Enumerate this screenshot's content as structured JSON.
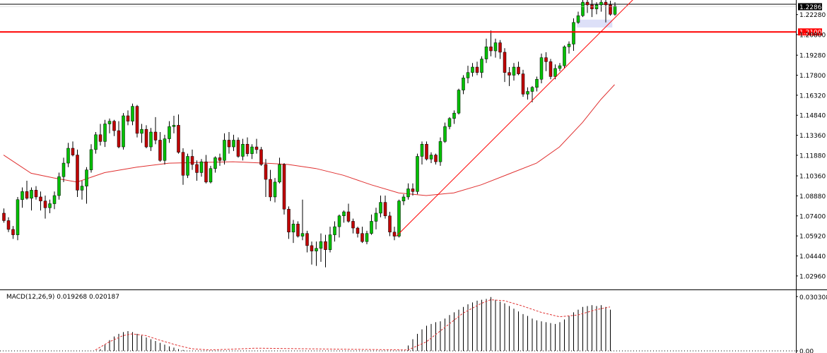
{
  "chart_data": [
    {
      "type": "candlestick",
      "title": "",
      "ylim": [
        1.0196,
        1.2336
      ],
      "price_ticks": [
        "1.22280",
        "1.20800",
        "1.19280",
        "1.17800",
        "1.16320",
        "1.14840",
        "1.13360",
        "1.11880",
        "1.10360",
        "1.08880",
        "1.07400",
        "1.05920",
        "1.04440",
        "1.02960"
      ],
      "current_price_label": "1.22865",
      "current_price": 1.22865,
      "horizontal_line": {
        "label": "1.21000",
        "value": 1.21,
        "color": "#ff0000"
      },
      "colors": {
        "up": "#00c000",
        "down": "#c00000",
        "wick": "#000000",
        "ma": "#e03030",
        "trend": "#ff0000",
        "zone": "#dde0f8"
      },
      "candles": [
        [
          1.076,
          1.0795,
          1.069,
          1.0705
        ],
        [
          1.0705,
          1.073,
          1.062,
          1.064
        ],
        [
          1.064,
          1.0665,
          1.057,
          1.06
        ],
        [
          1.06,
          1.088,
          1.056,
          1.086
        ],
        [
          1.086,
          1.095,
          1.08,
          1.092
        ],
        [
          1.092,
          1.1,
          1.086,
          1.087
        ],
        [
          1.087,
          1.095,
          1.078,
          1.093
        ],
        [
          1.093,
          1.096,
          1.086,
          1.088
        ],
        [
          1.088,
          1.092,
          1.078,
          1.085
        ],
        [
          1.085,
          1.089,
          1.072,
          1.08
        ],
        [
          1.08,
          1.086,
          1.076,
          1.083
        ],
        [
          1.083,
          1.092,
          1.079,
          1.089
        ],
        [
          1.089,
          1.106,
          1.086,
          1.103
        ],
        [
          1.103,
          1.117,
          1.099,
          1.113
        ],
        [
          1.113,
          1.128,
          1.11,
          1.124
        ],
        [
          1.124,
          1.129,
          1.118,
          1.119
        ],
        [
          1.119,
          1.123,
          1.088,
          1.093
        ],
        [
          1.093,
          1.1,
          1.086,
          1.096
        ],
        [
          1.096,
          1.11,
          1.083,
          1.108
        ],
        [
          1.108,
          1.127,
          1.106,
          1.123
        ],
        [
          1.123,
          1.136,
          1.12,
          1.134
        ],
        [
          1.134,
          1.142,
          1.126,
          1.129
        ],
        [
          1.129,
          1.145,
          1.125,
          1.142
        ],
        [
          1.142,
          1.146,
          1.135,
          1.144
        ],
        [
          1.144,
          1.145,
          1.133,
          1.137
        ],
        [
          1.137,
          1.144,
          1.124,
          1.125
        ],
        [
          1.125,
          1.15,
          1.123,
          1.148
        ],
        [
          1.148,
          1.152,
          1.141,
          1.144
        ],
        [
          1.144,
          1.157,
          1.141,
          1.155
        ],
        [
          1.155,
          1.156,
          1.132,
          1.135
        ],
        [
          1.135,
          1.142,
          1.128,
          1.138
        ],
        [
          1.138,
          1.141,
          1.124,
          1.125
        ],
        [
          1.125,
          1.139,
          1.122,
          1.136
        ],
        [
          1.136,
          1.147,
          1.127,
          1.13
        ],
        [
          1.13,
          1.136,
          1.114,
          1.115
        ],
        [
          1.115,
          1.134,
          1.112,
          1.131
        ],
        [
          1.131,
          1.144,
          1.128,
          1.14
        ],
        [
          1.14,
          1.148,
          1.135,
          1.141
        ],
        [
          1.141,
          1.149,
          1.12,
          1.121
        ],
        [
          1.121,
          1.124,
          1.097,
          1.104
        ],
        [
          1.104,
          1.12,
          1.102,
          1.118
        ],
        [
          1.118,
          1.123,
          1.108,
          1.112
        ],
        [
          1.112,
          1.115,
          1.1,
          1.106
        ],
        [
          1.106,
          1.116,
          1.103,
          1.114
        ],
        [
          1.114,
          1.119,
          1.098,
          1.099
        ],
        [
          1.099,
          1.111,
          1.098,
          1.109
        ],
        [
          1.109,
          1.118,
          1.106,
          1.117
        ],
        [
          1.117,
          1.12,
          1.111,
          1.115
        ],
        [
          1.115,
          1.135,
          1.112,
          1.13
        ],
        [
          1.13,
          1.136,
          1.12,
          1.125
        ],
        [
          1.125,
          1.134,
          1.122,
          1.13
        ],
        [
          1.13,
          1.132,
          1.117,
          1.118
        ],
        [
          1.118,
          1.131,
          1.115,
          1.127
        ],
        [
          1.127,
          1.132,
          1.118,
          1.12
        ],
        [
          1.12,
          1.127,
          1.116,
          1.125
        ],
        [
          1.125,
          1.131,
          1.12,
          1.123
        ],
        [
          1.123,
          1.125,
          1.111,
          1.112
        ],
        [
          1.112,
          1.116,
          1.088,
          1.101
        ],
        [
          1.101,
          1.108,
          1.085,
          1.088
        ],
        [
          1.088,
          1.102,
          1.084,
          1.099
        ],
        [
          1.099,
          1.117,
          1.098,
          1.112
        ],
        [
          1.112,
          1.113,
          1.075,
          1.079
        ],
        [
          1.079,
          1.081,
          1.057,
          1.062
        ],
        [
          1.062,
          1.071,
          1.054,
          1.068
        ],
        [
          1.068,
          1.07,
          1.058,
          1.059
        ],
        [
          1.059,
          1.086,
          1.056,
          1.061
        ],
        [
          1.061,
          1.063,
          1.047,
          1.052
        ],
        [
          1.052,
          1.055,
          1.038,
          1.048
        ],
        [
          1.048,
          1.055,
          1.037,
          1.05
        ],
        [
          1.05,
          1.061,
          1.04,
          1.055
        ],
        [
          1.055,
          1.06,
          1.036,
          1.049
        ],
        [
          1.049,
          1.066,
          1.047,
          1.06
        ],
        [
          1.06,
          1.07,
          1.055,
          1.066
        ],
        [
          1.066,
          1.075,
          1.058,
          1.074
        ],
        [
          1.074,
          1.078,
          1.069,
          1.077
        ],
        [
          1.077,
          1.083,
          1.069,
          1.07
        ],
        [
          1.07,
          1.072,
          1.061,
          1.065
        ],
        [
          1.065,
          1.066,
          1.058,
          1.061
        ],
        [
          1.061,
          1.066,
          1.054,
          1.055
        ],
        [
          1.055,
          1.063,
          1.053,
          1.061
        ],
        [
          1.061,
          1.075,
          1.06,
          1.07
        ],
        [
          1.07,
          1.08,
          1.064,
          1.076
        ],
        [
          1.076,
          1.089,
          1.073,
          1.084
        ],
        [
          1.084,
          1.089,
          1.072,
          1.074
        ],
        [
          1.074,
          1.077,
          1.059,
          1.062
        ],
        [
          1.062,
          1.066,
          1.056,
          1.059
        ],
        [
          1.059,
          1.086,
          1.058,
          1.085
        ],
        [
          1.085,
          1.09,
          1.082,
          1.088
        ],
        [
          1.088,
          1.098,
          1.086,
          1.094
        ],
        [
          1.094,
          1.098,
          1.089,
          1.092
        ],
        [
          1.092,
          1.12,
          1.09,
          1.118
        ],
        [
          1.118,
          1.129,
          1.112,
          1.127
        ],
        [
          1.127,
          1.129,
          1.115,
          1.116
        ],
        [
          1.116,
          1.121,
          1.113,
          1.119
        ],
        [
          1.119,
          1.12,
          1.112,
          1.114
        ],
        [
          1.114,
          1.132,
          1.111,
          1.129
        ],
        [
          1.129,
          1.143,
          1.128,
          1.14
        ],
        [
          1.14,
          1.147,
          1.138,
          1.146
        ],
        [
          1.146,
          1.152,
          1.142,
          1.15
        ],
        [
          1.15,
          1.168,
          1.149,
          1.167
        ],
        [
          1.167,
          1.178,
          1.164,
          1.176
        ],
        [
          1.176,
          1.185,
          1.172,
          1.18
        ],
        [
          1.18,
          1.187,
          1.177,
          1.184
        ],
        [
          1.184,
          1.188,
          1.178,
          1.18
        ],
        [
          1.18,
          1.192,
          1.176,
          1.19
        ],
        [
          1.19,
          1.205,
          1.187,
          1.199
        ],
        [
          1.199,
          1.211,
          1.192,
          1.196
        ],
        [
          1.196,
          1.205,
          1.191,
          1.202
        ],
        [
          1.202,
          1.204,
          1.19,
          1.195
        ],
        [
          1.195,
          1.198,
          1.173,
          1.18
        ],
        [
          1.18,
          1.184,
          1.17,
          1.178
        ],
        [
          1.178,
          1.187,
          1.174,
          1.184
        ],
        [
          1.184,
          1.188,
          1.178,
          1.179
        ],
        [
          1.179,
          1.182,
          1.162,
          1.164
        ],
        [
          1.164,
          1.169,
          1.16,
          1.166
        ],
        [
          1.166,
          1.17,
          1.158,
          1.169
        ],
        [
          1.169,
          1.177,
          1.166,
          1.175
        ],
        [
          1.175,
          1.194,
          1.172,
          1.191
        ],
        [
          1.191,
          1.195,
          1.181,
          1.188
        ],
        [
          1.188,
          1.19,
          1.175,
          1.177
        ],
        [
          1.177,
          1.186,
          1.175,
          1.183
        ],
        [
          1.183,
          1.187,
          1.181,
          1.185
        ],
        [
          1.185,
          1.2,
          1.183,
          1.199
        ],
        [
          1.199,
          1.203,
          1.194,
          1.201
        ],
        [
          1.201,
          1.22,
          1.196,
          1.217
        ],
        [
          1.217,
          1.225,
          1.216,
          1.222
        ],
        [
          1.222,
          1.234,
          1.221,
          1.232
        ],
        [
          1.232,
          1.234,
          1.224,
          1.23
        ],
        [
          1.23,
          1.234,
          1.221,
          1.227
        ],
        [
          1.227,
          1.232,
          1.223,
          1.23
        ],
        [
          1.23,
          1.234,
          1.225,
          1.232
        ],
        [
          1.232,
          1.234,
          1.217,
          1.23
        ],
        [
          1.23,
          1.233,
          1.222,
          1.223
        ],
        [
          1.223,
          1.232,
          1.222,
          1.229
        ]
      ],
      "moving_average": [
        [
          0,
          1.119
        ],
        [
          6,
          1.1055
        ],
        [
          11,
          1.102
        ],
        [
          16,
          1.099
        ],
        [
          22,
          1.106
        ],
        [
          29,
          1.11
        ],
        [
          36,
          1.113
        ],
        [
          43,
          1.1135
        ],
        [
          50,
          1.114
        ],
        [
          57,
          1.113
        ],
        [
          62,
          1.112
        ],
        [
          68,
          1.109
        ],
        [
          74,
          1.104
        ],
        [
          80,
          1.097
        ],
        [
          86,
          1.091
        ],
        [
          92,
          1.089
        ],
        [
          98,
          1.091
        ],
        [
          104,
          1.097
        ],
        [
          110,
          1.105
        ],
        [
          116,
          1.113
        ],
        [
          121,
          1.125
        ],
        [
          126,
          1.143
        ],
        [
          130,
          1.16
        ],
        [
          133,
          1.171
        ]
      ],
      "trendlines": [
        {
          "from": [
            85.5,
            1.059
          ],
          "to": [
            140,
            1.244
          ]
        }
      ],
      "zone": {
        "x_from": 124.8,
        "x_to": 132.5,
        "y_from": 1.2133,
        "y_to": 1.2191
      }
    },
    {
      "type": "macd",
      "label": "MACD(12,26,9) 0.019268 0.020187",
      "ylim": [
        0,
        0.030308
      ],
      "ticks": [
        "0.030308",
        "0.00"
      ],
      "histogram": [
        [
          21,
          0.001
        ],
        [
          22,
          0.0035
        ],
        [
          23,
          0.006
        ],
        [
          24,
          0.008
        ],
        [
          25,
          0.0095
        ],
        [
          26,
          0.0105
        ],
        [
          27,
          0.011
        ],
        [
          28,
          0.0105
        ],
        [
          29,
          0.0095
        ],
        [
          30,
          0.0085
        ],
        [
          31,
          0.0075
        ],
        [
          32,
          0.0065
        ],
        [
          33,
          0.0055
        ],
        [
          34,
          0.0045
        ],
        [
          35,
          0.0035
        ],
        [
          36,
          0.0025
        ],
        [
          37,
          0.0018
        ],
        [
          38,
          0.001
        ],
        [
          39,
          0.0005
        ],
        [
          88,
          0.003
        ],
        [
          89,
          0.0065
        ],
        [
          90,
          0.0095
        ],
        [
          91,
          0.012
        ],
        [
          92,
          0.014
        ],
        [
          93,
          0.015
        ],
        [
          94,
          0.016
        ],
        [
          95,
          0.0165
        ],
        [
          96,
          0.018
        ],
        [
          97,
          0.02
        ],
        [
          98,
          0.0215
        ],
        [
          99,
          0.023
        ],
        [
          100,
          0.0245
        ],
        [
          101,
          0.026
        ],
        [
          102,
          0.027
        ],
        [
          103,
          0.028
        ],
        [
          104,
          0.0285
        ],
        [
          105,
          0.029
        ],
        [
          106,
          0.03
        ],
        [
          107,
          0.0285
        ],
        [
          108,
          0.0275
        ],
        [
          109,
          0.0265
        ],
        [
          110,
          0.025
        ],
        [
          111,
          0.0235
        ],
        [
          112,
          0.022
        ],
        [
          113,
          0.0205
        ],
        [
          114,
          0.0195
        ],
        [
          115,
          0.018
        ],
        [
          116,
          0.017
        ],
        [
          117,
          0.0165
        ],
        [
          118,
          0.016
        ],
        [
          119,
          0.0155
        ],
        [
          120,
          0.015
        ],
        [
          121,
          0.016
        ],
        [
          122,
          0.0175
        ],
        [
          123,
          0.0195
        ],
        [
          124,
          0.0215
        ],
        [
          125,
          0.023
        ],
        [
          126,
          0.0245
        ],
        [
          127,
          0.025
        ],
        [
          128,
          0.0255
        ],
        [
          129,
          0.025
        ],
        [
          130,
          0.0255
        ],
        [
          131,
          0.0245
        ],
        [
          132,
          0.023
        ]
      ],
      "signal": [
        [
          20,
          0.0005
        ],
        [
          23,
          0.005
        ],
        [
          26,
          0.0085
        ],
        [
          28,
          0.0095
        ],
        [
          31,
          0.0085
        ],
        [
          34,
          0.006
        ],
        [
          38,
          0.003
        ],
        [
          41,
          0.0012
        ],
        [
          45,
          0.0005
        ],
        [
          50,
          0.001
        ],
        [
          55,
          0.0015
        ],
        [
          88,
          0.0005
        ],
        [
          92,
          0.005
        ],
        [
          96,
          0.013
        ],
        [
          100,
          0.021
        ],
        [
          104,
          0.0265
        ],
        [
          106,
          0.0285
        ],
        [
          109,
          0.028
        ],
        [
          113,
          0.025
        ],
        [
          117,
          0.0215
        ],
        [
          121,
          0.019
        ],
        [
          125,
          0.02
        ],
        [
          129,
          0.023
        ],
        [
          132,
          0.0245
        ]
      ]
    }
  ]
}
